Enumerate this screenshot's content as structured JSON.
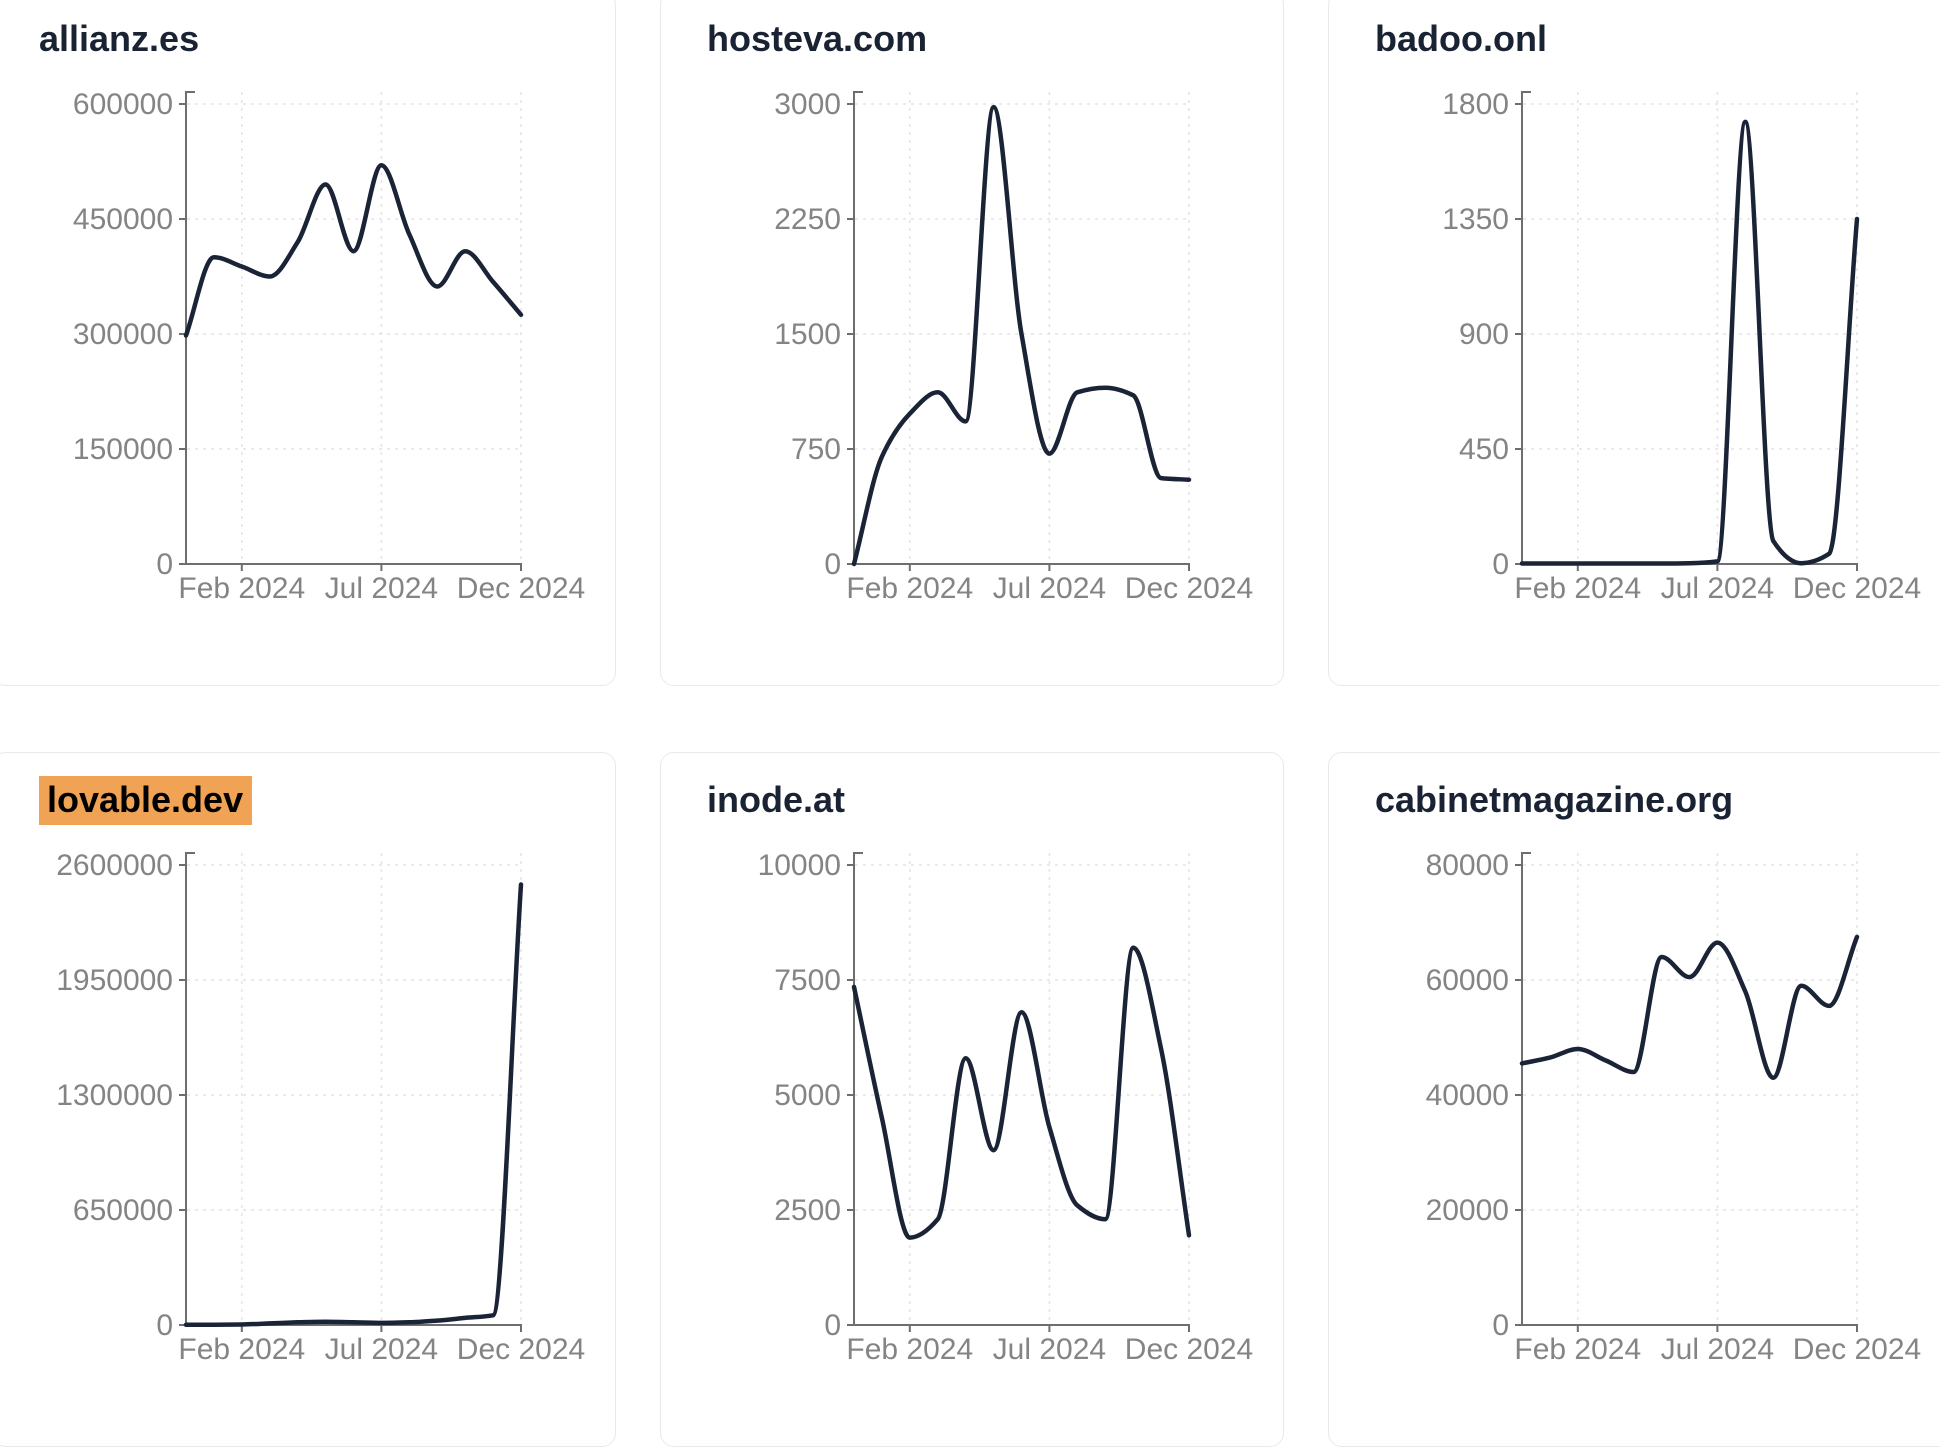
{
  "style": {
    "background": "#ffffff",
    "card_border": "#e8e9ef",
    "title_color": "#1a2333",
    "highlight_bg": "#f0a355",
    "line_color": "#1b2437",
    "axis_color": "#6e6e6e",
    "tick_label_color": "#848484",
    "grid_color": "#e4e4e7"
  },
  "months": [
    "Dec 2023",
    "Jan 2024",
    "Feb 2024",
    "Mar 2024",
    "Apr 2024",
    "May 2024",
    "Jun 2024",
    "Jul 2024",
    "Aug 2024",
    "Sep 2024",
    "Oct 2024",
    "Nov 2024",
    "Dec 2024"
  ],
  "x_tick_labels": [
    "Feb 2024",
    "Jul 2024",
    "Dec 2024"
  ],
  "x_tick_indices": [
    2,
    7,
    12
  ],
  "chart_data": [
    {
      "type": "line",
      "title": "allianz.es",
      "highlighted": false,
      "x": [
        "Dec 2023",
        "Jan 2024",
        "Feb 2024",
        "Mar 2024",
        "Apr 2024",
        "May 2024",
        "Jun 2024",
        "Jul 2024",
        "Aug 2024",
        "Sep 2024",
        "Oct 2024",
        "Nov 2024",
        "Dec 2024"
      ],
      "values": [
        298000,
        400000,
        388000,
        375000,
        420000,
        495000,
        408000,
        520000,
        430000,
        362000,
        408000,
        368000,
        325000
      ],
      "y_ticks": [
        0,
        150000,
        300000,
        450000,
        600000
      ],
      "ylim": [
        0,
        600000
      ],
      "x_tick_labels": [
        "Feb 2024",
        "Jul 2024",
        "Dec 2024"
      ],
      "x_tick_indices": [
        2,
        7,
        12
      ],
      "grid": true,
      "legend": "none"
    },
    {
      "type": "line",
      "title": "hosteva.com",
      "highlighted": false,
      "x": [
        "Dec 2023",
        "Jan 2024",
        "Feb 2024",
        "Mar 2024",
        "Apr 2024",
        "May 2024",
        "Jun 2024",
        "Jul 2024",
        "Aug 2024",
        "Sep 2024",
        "Oct 2024",
        "Nov 2024",
        "Dec 2024"
      ],
      "values": [
        0,
        700,
        980,
        1120,
        930,
        2980,
        1500,
        720,
        1120,
        1150,
        1100,
        560,
        550
      ],
      "y_ticks": [
        0,
        750,
        1500,
        2250,
        3000
      ],
      "ylim": [
        0,
        3000
      ],
      "x_tick_labels": [
        "Feb 2024",
        "Jul 2024",
        "Dec 2024"
      ],
      "x_tick_indices": [
        2,
        7,
        12
      ],
      "grid": true,
      "legend": "none"
    },
    {
      "type": "line",
      "title": "badoo.onl",
      "highlighted": false,
      "x": [
        "Dec 2023",
        "Jan 2024",
        "Feb 2024",
        "Mar 2024",
        "Apr 2024",
        "May 2024",
        "Jun 2024",
        "Jul 2024",
        "Aug 2024",
        "Sep 2024",
        "Oct 2024",
        "Nov 2024",
        "Dec 2024"
      ],
      "values": [
        2,
        2,
        2,
        2,
        2,
        2,
        3,
        10,
        1730,
        90,
        3,
        40,
        1350
      ],
      "y_ticks": [
        0,
        450,
        900,
        1350,
        1800
      ],
      "ylim": [
        0,
        1800
      ],
      "x_tick_labels": [
        "Feb 2024",
        "Jul 2024",
        "Dec 2024"
      ],
      "x_tick_indices": [
        2,
        7,
        12
      ],
      "grid": true,
      "legend": "none"
    },
    {
      "type": "line",
      "title": "lovable.dev",
      "highlighted": true,
      "x": [
        "Dec 2023",
        "Jan 2024",
        "Feb 2024",
        "Mar 2024",
        "Apr 2024",
        "May 2024",
        "Jun 2024",
        "Jul 2024",
        "Aug 2024",
        "Sep 2024",
        "Oct 2024",
        "Nov 2024",
        "Dec 2024"
      ],
      "values": [
        1000,
        1500,
        3000,
        9000,
        15000,
        18000,
        15000,
        12000,
        15000,
        25000,
        40000,
        55000,
        2490000
      ],
      "y_ticks": [
        0,
        650000,
        1300000,
        1950000,
        2600000
      ],
      "ylim": [
        0,
        2600000
      ],
      "x_tick_labels": [
        "Feb 2024",
        "Jul 2024",
        "Dec 2024"
      ],
      "x_tick_indices": [
        2,
        7,
        12
      ],
      "grid": true,
      "legend": "none"
    },
    {
      "type": "line",
      "title": "inode.at",
      "highlighted": false,
      "x": [
        "Dec 2023",
        "Jan 2024",
        "Feb 2024",
        "Mar 2024",
        "Apr 2024",
        "May 2024",
        "Jun 2024",
        "Jul 2024",
        "Aug 2024",
        "Sep 2024",
        "Oct 2024",
        "Nov 2024",
        "Dec 2024"
      ],
      "values": [
        7350,
        4500,
        1900,
        2300,
        5800,
        3800,
        6800,
        4300,
        2600,
        2300,
        8200,
        6000,
        1950
      ],
      "y_ticks": [
        0,
        2500,
        5000,
        7500,
        10000
      ],
      "ylim": [
        0,
        10000
      ],
      "x_tick_labels": [
        "Feb 2024",
        "Jul 2024",
        "Dec 2024"
      ],
      "x_tick_indices": [
        2,
        7,
        12
      ],
      "grid": true,
      "legend": "none"
    },
    {
      "type": "line",
      "title": "cabinetmagazine.org",
      "highlighted": false,
      "x": [
        "Dec 2023",
        "Jan 2024",
        "Feb 2024",
        "Mar 2024",
        "Apr 2024",
        "May 2024",
        "Jun 2024",
        "Jul 2024",
        "Aug 2024",
        "Sep 2024",
        "Oct 2024",
        "Nov 2024",
        "Dec 2024"
      ],
      "values": [
        45500,
        46500,
        48000,
        46000,
        44000,
        64000,
        60500,
        66500,
        58000,
        43000,
        59000,
        55500,
        67500
      ],
      "y_ticks": [
        0,
        20000,
        40000,
        60000,
        80000
      ],
      "ylim": [
        0,
        80000
      ],
      "x_tick_labels": [
        "Feb 2024",
        "Jul 2024",
        "Dec 2024"
      ],
      "x_tick_indices": [
        2,
        7,
        12
      ],
      "grid": true,
      "legend": "none"
    }
  ]
}
